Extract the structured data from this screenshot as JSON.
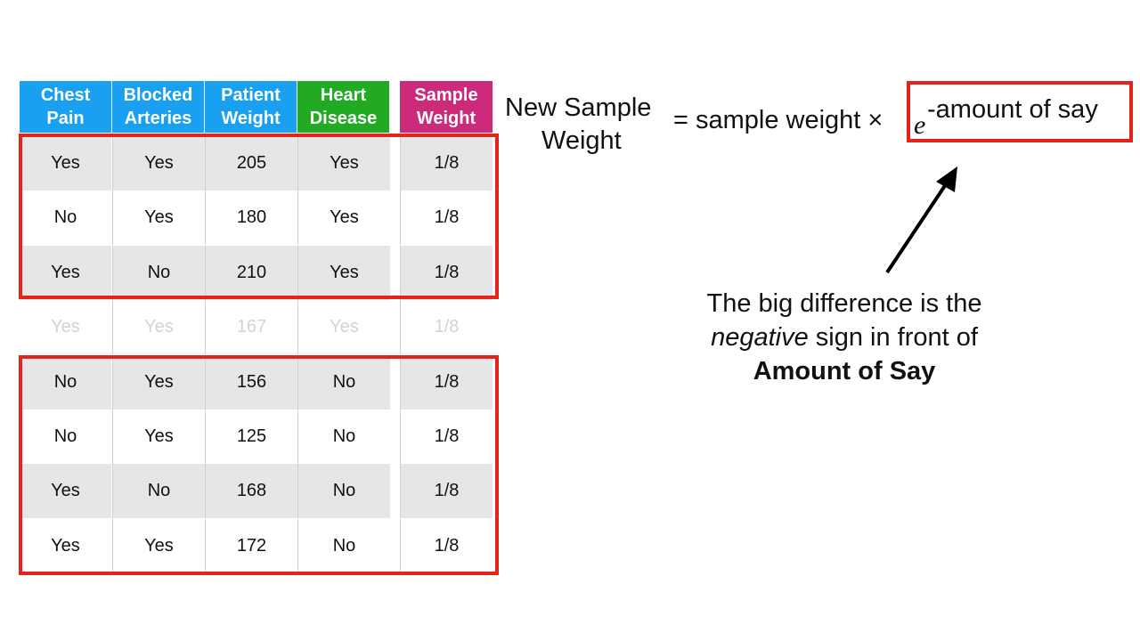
{
  "table": {
    "headers": [
      {
        "label": "Chest\nPain",
        "color": "#1aa0f0"
      },
      {
        "label": "Blocked\nArteries",
        "color": "#1aa0f0"
      },
      {
        "label": "Patient\nWeight",
        "color": "#1aa0f0"
      },
      {
        "label": "Heart\nDisease",
        "color": "#22aa22"
      },
      {
        "label": "Sample\nWeight",
        "color": "#cc2a7a"
      }
    ],
    "rows": [
      [
        "Yes",
        "Yes",
        "205",
        "Yes",
        "1/8"
      ],
      [
        "No",
        "Yes",
        "180",
        "Yes",
        "1/8"
      ],
      [
        "Yes",
        "No",
        "210",
        "Yes",
        "1/8"
      ],
      [
        "Yes",
        "Yes",
        "167",
        "Yes",
        "1/8"
      ],
      [
        "No",
        "Yes",
        "156",
        "No",
        "1/8"
      ],
      [
        "No",
        "Yes",
        "125",
        "No",
        "1/8"
      ],
      [
        "Yes",
        "No",
        "168",
        "No",
        "1/8"
      ],
      [
        "Yes",
        "Yes",
        "172",
        "No",
        "1/8"
      ]
    ]
  },
  "formula": {
    "lhs_line1": "New Sample",
    "lhs_line2": "Weight",
    "rhs": "= sample weight ×",
    "base": "e",
    "exponent": "-amount of say"
  },
  "note": {
    "part1": "The big difference is the",
    "emphasis": "negative",
    "part2": "sign in front of",
    "bold": "Amount of Say"
  },
  "colors": {
    "highlight_border": "#e3241c",
    "gray_row": "#e6e6e6",
    "faded_text": "#d3d3d3"
  }
}
